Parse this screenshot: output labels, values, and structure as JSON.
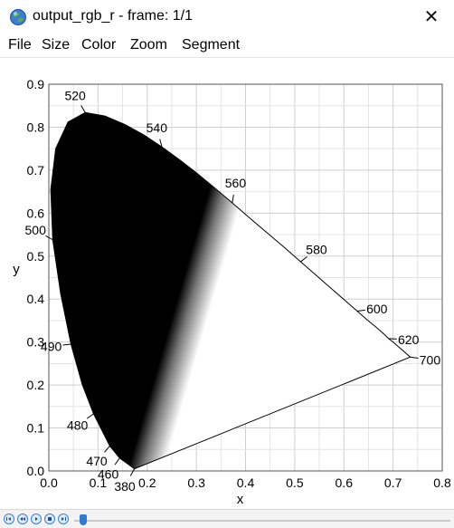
{
  "window": {
    "title": "output_rgb_r - frame: 1/1",
    "close_glyph": "✕",
    "icon": "app-globe-icon"
  },
  "menu": {
    "items": [
      "File",
      "Size",
      "Color",
      "Zoom",
      "Segment"
    ]
  },
  "chart_data": {
    "type": "chromaticity-diagram",
    "xlabel": "x",
    "ylabel": "y",
    "xlim": [
      0.0,
      0.8
    ],
    "ylim": [
      0.0,
      0.9
    ],
    "grid": true,
    "x_ticks": [
      "0.0",
      "0.1",
      "0.2",
      "0.3",
      "0.4",
      "0.5",
      "0.6",
      "0.7",
      "0.8"
    ],
    "y_ticks": [
      "0.0",
      "0.1",
      "0.2",
      "0.3",
      "0.4",
      "0.5",
      "0.6",
      "0.7",
      "0.8",
      "0.9"
    ],
    "wavelength_labels": [
      {
        "label": "380",
        "x": 0.174,
        "y": 0.005
      },
      {
        "label": "460",
        "x": 0.144,
        "y": 0.03
      },
      {
        "label": "470",
        "x": 0.124,
        "y": 0.058
      },
      {
        "label": "480",
        "x": 0.091,
        "y": 0.133
      },
      {
        "label": "490",
        "x": 0.045,
        "y": 0.295
      },
      {
        "label": "500",
        "x": 0.008,
        "y": 0.538
      },
      {
        "label": "520",
        "x": 0.074,
        "y": 0.834
      },
      {
        "label": "540",
        "x": 0.23,
        "y": 0.754
      },
      {
        "label": "560",
        "x": 0.373,
        "y": 0.624
      },
      {
        "label": "580",
        "x": 0.512,
        "y": 0.487
      },
      {
        "label": "600",
        "x": 0.627,
        "y": 0.372
      },
      {
        "label": "620",
        "x": 0.691,
        "y": 0.308
      },
      {
        "label": "700",
        "x": 0.735,
        "y": 0.265
      }
    ],
    "locus": [
      [
        0.174,
        0.005
      ],
      [
        0.144,
        0.03
      ],
      [
        0.124,
        0.058
      ],
      [
        0.091,
        0.133
      ],
      [
        0.068,
        0.201
      ],
      [
        0.045,
        0.295
      ],
      [
        0.024,
        0.413
      ],
      [
        0.008,
        0.538
      ],
      [
        0.004,
        0.655
      ],
      [
        0.014,
        0.75
      ],
      [
        0.039,
        0.812
      ],
      [
        0.074,
        0.834
      ],
      [
        0.114,
        0.826
      ],
      [
        0.155,
        0.806
      ],
      [
        0.193,
        0.782
      ],
      [
        0.23,
        0.754
      ],
      [
        0.266,
        0.724
      ],
      [
        0.302,
        0.692
      ],
      [
        0.337,
        0.659
      ],
      [
        0.373,
        0.624
      ],
      [
        0.408,
        0.589
      ],
      [
        0.444,
        0.554
      ],
      [
        0.479,
        0.52
      ],
      [
        0.512,
        0.487
      ],
      [
        0.545,
        0.454
      ],
      [
        0.575,
        0.424
      ],
      [
        0.603,
        0.396
      ],
      [
        0.627,
        0.372
      ],
      [
        0.648,
        0.351
      ],
      [
        0.666,
        0.334
      ],
      [
        0.68,
        0.32
      ],
      [
        0.691,
        0.308
      ],
      [
        0.701,
        0.299
      ],
      [
        0.719,
        0.281
      ],
      [
        0.735,
        0.265
      ]
    ]
  },
  "player": {
    "buttons": [
      "skip-start-icon",
      "step-back-icon",
      "play-icon",
      "stop-icon",
      "skip-end-icon"
    ],
    "position": 0.0
  }
}
